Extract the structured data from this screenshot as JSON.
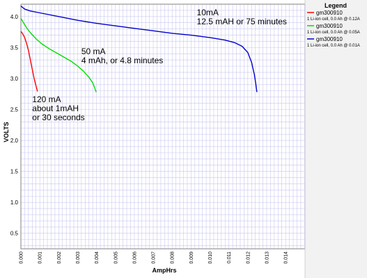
{
  "chart_data": {
    "type": "line",
    "title": "",
    "xlabel": "AmpHrs",
    "ylabel": "VOLTS",
    "xlim": [
      0,
      0.0151
    ],
    "ylim": [
      0.25,
      4.2
    ],
    "x_ticks": [
      "0.000",
      "0.001",
      "0.002",
      "0.003",
      "0.004",
      "0.005",
      "0.006",
      "0.007",
      "0.008",
      "0.009",
      "0.010",
      "0.011",
      "0.012",
      "0.013",
      "0.014"
    ],
    "y_ticks": [
      "0.5",
      "1.0",
      "1.5",
      "2.0",
      "2.5",
      "3.0",
      "3.5",
      "4.0"
    ],
    "grid": true,
    "legend": {
      "title": "Legend",
      "placement": "right"
    },
    "series": [
      {
        "name": "gm300910",
        "description": "1 Li-ion cell, 0.0 Ah @ 0.12A",
        "color": "#ff0000",
        "x": [
          0,
          0.0001,
          0.0002,
          0.0003,
          0.0004,
          0.0005,
          0.0006,
          0.0007,
          0.0008,
          0.00088
        ],
        "y": [
          3.76,
          3.72,
          3.66,
          3.57,
          3.45,
          3.3,
          3.15,
          3.0,
          2.88,
          2.79
        ]
      },
      {
        "name": "gm300910",
        "description": "1 Li-ion cell, 0.0 Ah @ 0.05A",
        "color": "#00dd00",
        "x": [
          0,
          0.0001,
          0.0003,
          0.0005,
          0.0008,
          0.0011,
          0.0015,
          0.0019,
          0.0023,
          0.0027,
          0.003,
          0.0033,
          0.0036,
          0.0038,
          0.0039,
          0.00398
        ],
        "y": [
          3.97,
          3.92,
          3.82,
          3.74,
          3.64,
          3.56,
          3.48,
          3.41,
          3.34,
          3.27,
          3.2,
          3.12,
          3.02,
          2.93,
          2.85,
          2.78
        ]
      },
      {
        "name": "gm300910",
        "description": "1 Li-ion cell, 0.0 Ah @ 0.01A",
        "color": "#0000cc",
        "x": [
          0,
          0.0002,
          0.0005,
          0.001,
          0.002,
          0.003,
          0.004,
          0.005,
          0.006,
          0.007,
          0.008,
          0.009,
          0.01,
          0.0108,
          0.0113,
          0.0117,
          0.012,
          0.0122,
          0.01235,
          0.01243,
          0.01248
        ],
        "y": [
          4.17,
          4.12,
          4.09,
          4.06,
          4.0,
          3.94,
          3.89,
          3.85,
          3.81,
          3.77,
          3.73,
          3.7,
          3.66,
          3.62,
          3.58,
          3.52,
          3.42,
          3.26,
          3.06,
          2.9,
          2.78
        ]
      }
    ],
    "annotations": [
      {
        "lines": [
          "10mA",
          "12.5 mAH or 75 minutes"
        ],
        "at": [
          0.0093,
          4.02
        ]
      },
      {
        "lines": [
          "50 mA",
          "4 mAh, or 4.8 minutes"
        ],
        "at": [
          0.0032,
          3.39
        ]
      },
      {
        "lines": [
          "120 mA",
          "about 1mAH",
          "or 30 seconds"
        ],
        "at": [
          0.0006,
          2.62
        ]
      }
    ]
  }
}
